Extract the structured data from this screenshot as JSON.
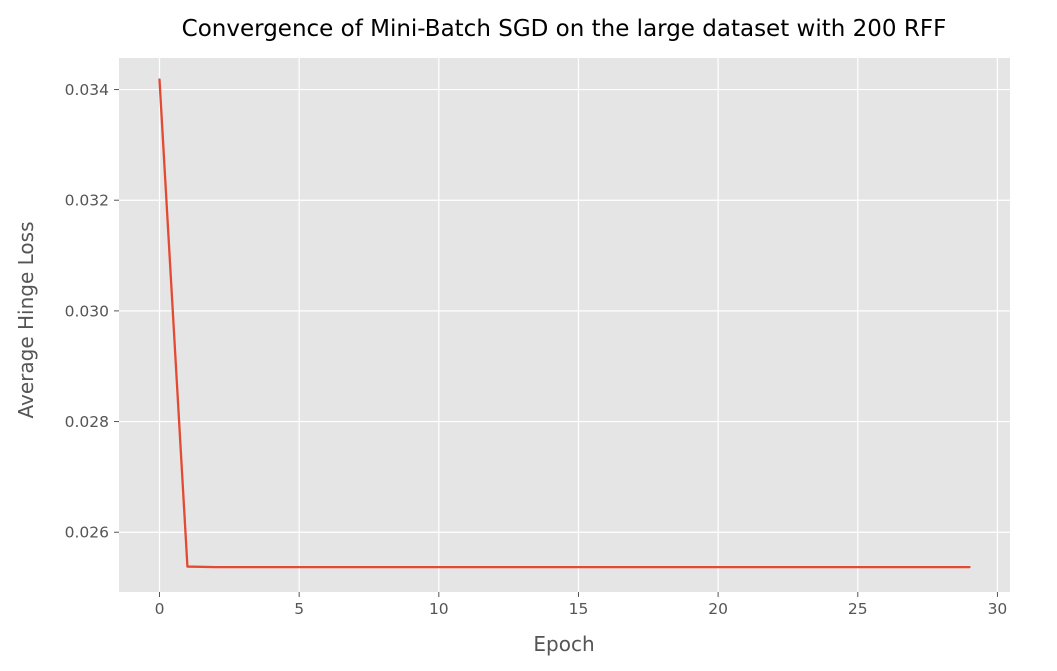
{
  "chart_data": {
    "type": "line",
    "title": "Convergence of Mini-Batch SGD on the large dataset with 200 RFF",
    "xlabel": "Epoch",
    "ylabel": "Average Hinge Loss",
    "xlim": [
      -1.45,
      30.45
    ],
    "ylim": [
      0.02492,
      0.03457
    ],
    "x_ticks": [
      0,
      5,
      10,
      15,
      20,
      25,
      30
    ],
    "y_ticks": [
      0.026,
      0.028,
      0.03,
      0.032,
      0.034
    ],
    "x_tick_labels": [
      "0",
      "5",
      "10",
      "15",
      "20",
      "25",
      "30"
    ],
    "y_tick_labels": [
      "0.026",
      "0.028",
      "0.030",
      "0.032",
      "0.034"
    ],
    "grid": true,
    "style": "ggplot",
    "series": [
      {
        "color": "#E24A33",
        "x": [
          0,
          1,
          2,
          3,
          4,
          5,
          6,
          7,
          8,
          9,
          10,
          11,
          12,
          13,
          14,
          15,
          16,
          17,
          18,
          19,
          20,
          21,
          22,
          23,
          24,
          25,
          26,
          27,
          28,
          29
        ],
        "values": [
          0.03418,
          0.02538,
          0.02537,
          0.02537,
          0.02537,
          0.02537,
          0.02537,
          0.02537,
          0.02537,
          0.02537,
          0.02537,
          0.02537,
          0.02537,
          0.02537,
          0.02537,
          0.02537,
          0.02537,
          0.02537,
          0.02537,
          0.02537,
          0.02537,
          0.02537,
          0.02537,
          0.02537,
          0.02537,
          0.02537,
          0.02537,
          0.02537,
          0.02537,
          0.02537
        ]
      }
    ]
  }
}
